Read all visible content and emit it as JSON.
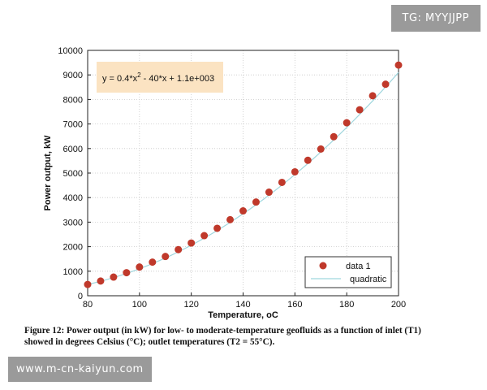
{
  "watermarks": {
    "top": "TG: MYYJJPP",
    "bottom": "www.m-cn-kaiyun.com"
  },
  "caption": "Figure 12: Power output (in kW) for low- to moderate-temperature geofluids as a function of inlet (T1) showed in degrees Celsius (°C); outlet temperatures (T2 = 55°C).",
  "chart_data": {
    "type": "scatter",
    "xlabel": "Temperature, oC",
    "ylabel": "Power output, kW",
    "xlim": [
      80,
      200
    ],
    "ylim": [
      0,
      10000
    ],
    "xticks": [
      80,
      100,
      120,
      140,
      160,
      180,
      200
    ],
    "yticks": [
      0,
      1000,
      2000,
      3000,
      4000,
      5000,
      6000,
      7000,
      8000,
      9000,
      10000
    ],
    "grid": true,
    "equation_box": {
      "prefix": "y = 0.4*x",
      "sup": "2",
      "suffix": " - 40*x + 1.1e+003"
    },
    "legend": {
      "position": "bottom-right",
      "entries": [
        "data 1",
        "quadratic"
      ]
    },
    "series": [
      {
        "name": "data 1",
        "kind": "points",
        "color": "#c0392b",
        "x": [
          80,
          85,
          90,
          95,
          100,
          105,
          110,
          115,
          120,
          125,
          130,
          135,
          140,
          145,
          150,
          155,
          160,
          165,
          170,
          175,
          180,
          185,
          190,
          195,
          200
        ],
        "y": [
          460,
          600,
          760,
          940,
          1170,
          1370,
          1600,
          1880,
          2150,
          2450,
          2750,
          3100,
          3460,
          3820,
          4220,
          4620,
          5050,
          5520,
          5980,
          6480,
          7050,
          7580,
          8150,
          8620,
          9400
        ]
      },
      {
        "name": "quadratic",
        "kind": "line",
        "color": "#9fd6dd",
        "coefficients": [
          0.4,
          -40,
          1100
        ]
      }
    ]
  }
}
